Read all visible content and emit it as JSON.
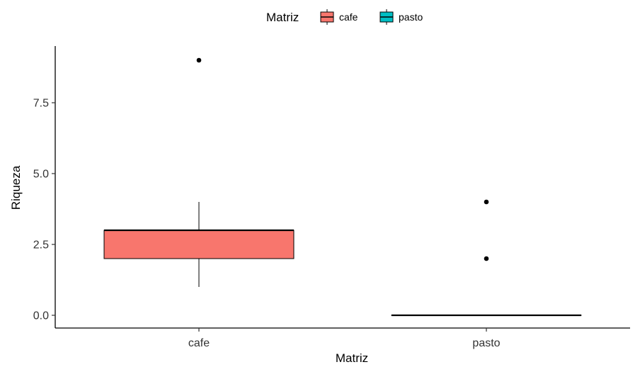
{
  "chart_data": {
    "type": "box",
    "xlabel": "Matriz",
    "ylabel": "Riqueza",
    "ylim": [
      -0.45,
      9.5
    ],
    "yticks": [
      0.0,
      2.5,
      5.0,
      7.5
    ],
    "ytick_labels": [
      "0.0",
      "2.5",
      "5.0",
      "7.5"
    ],
    "categories": [
      "cafe",
      "pasto"
    ],
    "grid": false,
    "legend": {
      "title": "Matriz",
      "position": "top",
      "entries": [
        "cafe",
        "pasto"
      ]
    },
    "series": [
      {
        "name": "cafe",
        "color": "#F8766D",
        "whisker_low": 1,
        "q1": 2,
        "median": 3,
        "q3": 3,
        "whisker_high": 4,
        "outliers": [
          9
        ]
      },
      {
        "name": "pasto",
        "color": "#00BFC4",
        "whisker_low": 0,
        "q1": 0,
        "median": 0,
        "q3": 0,
        "whisker_high": 0,
        "outliers": [
          2,
          4
        ]
      }
    ]
  }
}
